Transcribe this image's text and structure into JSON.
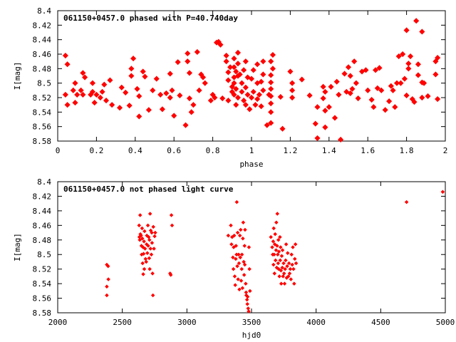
{
  "figure": {
    "panels": [
      {
        "title": "061150+0457.0 phased with P=40.740day",
        "xlabel": "phase",
        "ylabel": "I[mag]",
        "color": "#ff0000"
      },
      {
        "title": "061150+0457.0 not phased light curve",
        "xlabel": "hjd0",
        "ylabel": "I[mag]",
        "color": "#ff0000"
      }
    ]
  },
  "chart_data": [
    {
      "type": "scatter",
      "title": "061150+0457.0 phased with P=40.740day",
      "xlabel": "phase",
      "ylabel": "I[mag]",
      "xlim": [
        0,
        2
      ],
      "ylim": [
        8.58,
        8.4
      ],
      "y_inverted": true,
      "grid": false,
      "marker": "filled-diamond",
      "color": "#ff0000",
      "xticks": [
        "0",
        "0.2",
        "0.4",
        "0.6",
        "0.8",
        "1",
        "1.2",
        "1.4",
        "1.6",
        "1.8",
        "2"
      ],
      "yticks": [
        "8.4",
        "8.42",
        "8.44",
        "8.46",
        "8.48",
        "8.5",
        "8.52",
        "8.54",
        "8.56",
        "8.58"
      ],
      "points": [
        [
          0.04,
          8.462
        ],
        [
          0.05,
          8.474
        ],
        [
          0.04,
          8.516
        ],
        [
          0.05,
          8.53
        ],
        [
          0.08,
          8.51
        ],
        [
          0.09,
          8.5
        ],
        [
          0.09,
          8.527
        ],
        [
          0.1,
          8.516
        ],
        [
          0.12,
          8.51
        ],
        [
          0.13,
          8.486
        ],
        [
          0.13,
          8.516
        ],
        [
          0.14,
          8.492
        ],
        [
          0.17,
          8.516
        ],
        [
          0.18,
          8.5
        ],
        [
          0.18,
          8.512
        ],
        [
          0.19,
          8.527
        ],
        [
          0.2,
          8.516
        ],
        [
          0.22,
          8.52
        ],
        [
          0.23,
          8.512
        ],
        [
          0.24,
          8.502
        ],
        [
          0.25,
          8.524
        ],
        [
          0.27,
          8.496
        ],
        [
          0.28,
          8.53
        ],
        [
          0.32,
          8.534
        ],
        [
          0.33,
          8.506
        ],
        [
          0.35,
          8.513
        ],
        [
          0.37,
          8.531
        ],
        [
          0.38,
          8.48
        ],
        [
          0.38,
          8.49
        ],
        [
          0.39,
          8.466
        ],
        [
          0.41,
          8.508
        ],
        [
          0.42,
          8.518
        ],
        [
          0.42,
          8.546
        ],
        [
          0.44,
          8.484
        ],
        [
          0.45,
          8.491
        ],
        [
          0.47,
          8.537
        ],
        [
          0.49,
          8.51
        ],
        [
          0.51,
          8.494
        ],
        [
          0.53,
          8.516
        ],
        [
          0.54,
          8.536
        ],
        [
          0.56,
          8.514
        ],
        [
          0.58,
          8.487
        ],
        [
          0.58,
          8.52
        ],
        [
          0.59,
          8.51
        ],
        [
          0.6,
          8.545
        ],
        [
          0.62,
          8.471
        ],
        [
          0.63,
          8.517
        ],
        [
          0.66,
          8.558
        ],
        [
          0.67,
          8.459
        ],
        [
          0.67,
          8.47
        ],
        [
          0.68,
          8.486
        ],
        [
          0.68,
          8.521
        ],
        [
          0.69,
          8.54
        ],
        [
          0.7,
          8.53
        ],
        [
          0.72,
          8.457
        ],
        [
          0.73,
          8.51
        ],
        [
          0.74,
          8.488
        ],
        [
          0.75,
          8.492
        ],
        [
          0.76,
          8.5
        ],
        [
          0.79,
          8.524
        ],
        [
          0.8,
          8.516
        ],
        [
          0.81,
          8.52
        ],
        [
          0.82,
          8.444
        ],
        [
          0.83,
          8.443
        ],
        [
          0.84,
          8.447
        ],
        [
          0.85,
          8.521
        ],
        [
          0.87,
          8.462
        ],
        [
          0.87,
          8.47
        ],
        [
          0.88,
          8.485
        ],
        [
          0.88,
          8.496
        ],
        [
          0.88,
          8.524
        ],
        [
          0.89,
          8.478
        ],
        [
          0.9,
          8.505
        ],
        [
          0.9,
          8.512
        ],
        [
          0.91,
          8.466
        ],
        [
          0.91,
          8.478
        ],
        [
          0.91,
          8.492
        ],
        [
          0.91,
          8.5
        ],
        [
          0.91,
          8.516
        ],
        [
          0.92,
          8.484
        ],
        [
          0.92,
          8.508
        ],
        [
          0.92,
          8.53
        ],
        [
          0.93,
          8.458
        ],
        [
          0.93,
          8.473
        ],
        [
          0.93,
          8.49
        ],
        [
          0.93,
          8.52
        ],
        [
          0.94,
          8.488
        ],
        [
          0.95,
          8.5
        ],
        [
          0.95,
          8.512
        ],
        [
          0.96,
          8.482
        ],
        [
          0.96,
          8.524
        ],
        [
          0.97,
          8.47
        ],
        [
          0.97,
          8.506
        ],
        [
          0.97,
          8.53
        ],
        [
          0.98,
          8.516
        ],
        [
          0.98,
          8.492
        ],
        [
          0.99,
          8.536
        ],
        [
          1.0,
          8.494
        ],
        [
          1.0,
          8.52
        ],
        [
          1.01,
          8.482
        ],
        [
          1.01,
          8.512
        ],
        [
          1.02,
          8.53
        ],
        [
          1.03,
          8.474
        ],
        [
          1.03,
          8.5
        ],
        [
          1.03,
          8.522
        ],
        [
          1.04,
          8.516
        ],
        [
          1.05,
          8.498
        ],
        [
          1.05,
          8.532
        ],
        [
          1.06,
          8.47
        ],
        [
          1.06,
          8.488
        ],
        [
          1.06,
          8.51
        ],
        [
          1.08,
          8.558
        ],
        [
          1.09,
          8.516
        ],
        [
          1.1,
          8.47
        ],
        [
          1.1,
          8.489
        ],
        [
          1.1,
          8.499
        ],
        [
          1.1,
          8.508
        ],
        [
          1.1,
          8.518
        ],
        [
          1.1,
          8.528
        ],
        [
          1.1,
          8.54
        ],
        [
          1.1,
          8.555
        ],
        [
          1.11,
          8.461
        ],
        [
          1.11,
          8.48
        ],
        [
          1.15,
          8.519
        ],
        [
          1.16,
          8.563
        ],
        [
          1.2,
          8.484
        ],
        [
          1.21,
          8.51
        ],
        [
          1.21,
          8.5
        ],
        [
          1.21,
          8.52
        ],
        [
          1.26,
          8.495
        ],
        [
          1.3,
          8.517
        ],
        [
          1.33,
          8.556
        ],
        [
          1.34,
          8.533
        ],
        [
          1.34,
          8.576
        ],
        [
          1.37,
          8.505
        ],
        [
          1.37,
          8.521
        ],
        [
          1.38,
          8.512
        ],
        [
          1.38,
          8.538
        ],
        [
          1.38,
          8.561
        ],
        [
          1.4,
          8.533
        ],
        [
          1.41,
          8.505
        ],
        [
          1.43,
          8.548
        ],
        [
          1.44,
          8.498
        ],
        [
          1.45,
          8.516
        ],
        [
          1.46,
          8.578
        ],
        [
          1.48,
          8.487
        ],
        [
          1.49,
          8.512
        ],
        [
          1.5,
          8.478
        ],
        [
          1.51,
          8.514
        ],
        [
          1.51,
          8.49
        ],
        [
          1.52,
          8.508
        ],
        [
          1.53,
          8.47
        ],
        [
          1.54,
          8.5
        ],
        [
          1.55,
          8.521
        ],
        [
          1.57,
          8.484
        ],
        [
          1.59,
          8.482
        ],
        [
          1.6,
          8.51
        ],
        [
          1.62,
          8.523
        ],
        [
          1.63,
          8.533
        ],
        [
          1.64,
          8.482
        ],
        [
          1.65,
          8.507
        ],
        [
          1.66,
          8.479
        ],
        [
          1.67,
          8.51
        ],
        [
          1.69,
          8.537
        ],
        [
          1.71,
          8.525
        ],
        [
          1.72,
          8.504
        ],
        [
          1.73,
          8.51
        ],
        [
          1.74,
          8.533
        ],
        [
          1.75,
          8.5
        ],
        [
          1.76,
          8.463
        ],
        [
          1.77,
          8.5
        ],
        [
          1.78,
          8.46
        ],
        [
          1.79,
          8.494
        ],
        [
          1.8,
          8.427
        ],
        [
          1.8,
          8.517
        ],
        [
          1.81,
          8.473
        ],
        [
          1.81,
          8.48
        ],
        [
          1.82,
          8.463
        ],
        [
          1.83,
          8.522
        ],
        [
          1.84,
          8.526
        ],
        [
          1.85,
          8.414
        ],
        [
          1.86,
          8.489
        ],
        [
          1.86,
          8.474
        ],
        [
          1.88,
          8.52
        ],
        [
          1.88,
          8.429
        ],
        [
          1.88,
          8.499
        ],
        [
          1.89,
          8.5
        ],
        [
          1.91,
          8.518
        ],
        [
          1.95,
          8.488
        ],
        [
          1.95,
          8.47
        ],
        [
          1.96,
          8.465
        ],
        [
          1.96,
          8.522
        ]
      ]
    },
    {
      "type": "scatter",
      "title": "061150+0457.0 not phased light curve",
      "xlabel": "hjd0",
      "ylabel": "I[mag]",
      "xlim": [
        2000,
        5000
      ],
      "ylim": [
        8.58,
        8.4
      ],
      "y_inverted": true,
      "grid": false,
      "marker": "small-diamond",
      "color": "#ff0000",
      "xticks": [
        "2000",
        "2500",
        "3000",
        "3500",
        "4000",
        "4500",
        "5000"
      ],
      "yticks": [
        "8.4",
        "8.42",
        "8.44",
        "8.46",
        "8.48",
        "8.5",
        "8.52",
        "8.54",
        "8.56",
        "8.58"
      ],
      "points": [
        [
          2380,
          8.514
        ],
        [
          2380,
          8.544
        ],
        [
          2380,
          8.556
        ],
        [
          2390,
          8.516
        ],
        [
          2392,
          8.534
        ],
        [
          2630,
          8.46
        ],
        [
          2632,
          8.476
        ],
        [
          2635,
          8.48
        ],
        [
          2638,
          8.446
        ],
        [
          2640,
          8.472
        ],
        [
          2645,
          8.474
        ],
        [
          2648,
          8.488
        ],
        [
          2650,
          8.5
        ],
        [
          2653,
          8.464
        ],
        [
          2655,
          8.478
        ],
        [
          2657,
          8.512
        ],
        [
          2660,
          8.49
        ],
        [
          2662,
          8.527
        ],
        [
          2665,
          8.499
        ],
        [
          2668,
          8.482
        ],
        [
          2670,
          8.52
        ],
        [
          2672,
          8.468
        ],
        [
          2676,
          8.492
        ],
        [
          2680,
          8.506
        ],
        [
          2685,
          8.51
        ],
        [
          2688,
          8.486
        ],
        [
          2690,
          8.474
        ],
        [
          2694,
          8.498
        ],
        [
          2698,
          8.46
        ],
        [
          2700,
          8.488
        ],
        [
          2704,
          8.476
        ],
        [
          2708,
          8.505
        ],
        [
          2710,
          8.48
        ],
        [
          2712,
          8.52
        ],
        [
          2715,
          8.444
        ],
        [
          2718,
          8.492
        ],
        [
          2720,
          8.467
        ],
        [
          2725,
          8.5
        ],
        [
          2728,
          8.47
        ],
        [
          2730,
          8.484
        ],
        [
          2734,
          8.526
        ],
        [
          2737,
          8.556
        ],
        [
          2740,
          8.462
        ],
        [
          2745,
          8.492
        ],
        [
          2750,
          8.475
        ],
        [
          2755,
          8.47
        ],
        [
          2870,
          8.526
        ],
        [
          2875,
          8.528
        ],
        [
          2880,
          8.446
        ],
        [
          2885,
          8.46
        ],
        [
          3320,
          8.474
        ],
        [
          3340,
          8.46
        ],
        [
          3345,
          8.486
        ],
        [
          3350,
          8.476
        ],
        [
          3356,
          8.504
        ],
        [
          3360,
          8.52
        ],
        [
          3362,
          8.49
        ],
        [
          3366,
          8.474
        ],
        [
          3370,
          8.53
        ],
        [
          3374,
          8.542
        ],
        [
          3378,
          8.506
        ],
        [
          3380,
          8.488
        ],
        [
          3384,
          8.5
        ],
        [
          3386,
          8.428
        ],
        [
          3390,
          8.516
        ],
        [
          3393,
          8.47
        ],
        [
          3396,
          8.534
        ],
        [
          3400,
          8.5
        ],
        [
          3403,
          8.512
        ],
        [
          3406,
          8.548
        ],
        [
          3410,
          8.474
        ],
        [
          3413,
          8.504
        ],
        [
          3416,
          8.466
        ],
        [
          3420,
          8.536
        ],
        [
          3424,
          8.52
        ],
        [
          3426,
          8.5
        ],
        [
          3430,
          8.546
        ],
        [
          3433,
          8.478
        ],
        [
          3436,
          8.456
        ],
        [
          3440,
          8.51
        ],
        [
          3443,
          8.528
        ],
        [
          3446,
          8.488
        ],
        [
          3448,
          8.514
        ],
        [
          3450,
          8.466
        ],
        [
          3455,
          8.54
        ],
        [
          3458,
          8.552
        ],
        [
          3460,
          8.556
        ],
        [
          3465,
          8.562
        ],
        [
          3468,
          8.568
        ],
        [
          3470,
          8.558
        ],
        [
          3474,
          8.574
        ],
        [
          3478,
          8.578
        ],
        [
          3480,
          8.49
        ],
        [
          3484,
          8.52
        ],
        [
          3488,
          8.55
        ],
        [
          3650,
          8.476
        ],
        [
          3660,
          8.49
        ],
        [
          3664,
          8.5
        ],
        [
          3668,
          8.482
        ],
        [
          3670,
          8.514
        ],
        [
          3672,
          8.464
        ],
        [
          3675,
          8.5
        ],
        [
          3678,
          8.526
        ],
        [
          3680,
          8.486
        ],
        [
          3683,
          8.472
        ],
        [
          3686,
          8.508
        ],
        [
          3690,
          8.494
        ],
        [
          3692,
          8.456
        ],
        [
          3695,
          8.518
        ],
        [
          3698,
          8.488
        ],
        [
          3700,
          8.444
        ],
        [
          3703,
          8.5
        ],
        [
          3706,
          8.512
        ],
        [
          3708,
          8.48
        ],
        [
          3710,
          8.52
        ],
        [
          3712,
          8.496
        ],
        [
          3716,
          8.53
        ],
        [
          3720,
          8.476
        ],
        [
          3722,
          8.508
        ],
        [
          3725,
          8.49
        ],
        [
          3728,
          8.522
        ],
        [
          3730,
          8.54
        ],
        [
          3734,
          8.502
        ],
        [
          3738,
          8.518
        ],
        [
          3740,
          8.494
        ],
        [
          3744,
          8.53
        ],
        [
          3748,
          8.512
        ],
        [
          3752,
          8.526
        ],
        [
          3756,
          8.54
        ],
        [
          3760,
          8.52
        ],
        [
          3764,
          8.508
        ],
        [
          3768,
          8.486
        ],
        [
          3772,
          8.532
        ],
        [
          3776,
          8.516
        ],
        [
          3780,
          8.498
        ],
        [
          3785,
          8.53
        ],
        [
          3790,
          8.512
        ],
        [
          3795,
          8.526
        ],
        [
          3800,
          8.52
        ],
        [
          3805,
          8.534
        ],
        [
          3810,
          8.5
        ],
        [
          3815,
          8.514
        ],
        [
          3820,
          8.49
        ],
        [
          3825,
          8.52
        ],
        [
          3830,
          8.54
        ],
        [
          3835,
          8.506
        ],
        [
          3840,
          8.486
        ],
        [
          3845,
          8.512
        ],
        [
          4700,
          8.428
        ],
        [
          4980,
          8.414
        ]
      ]
    }
  ]
}
